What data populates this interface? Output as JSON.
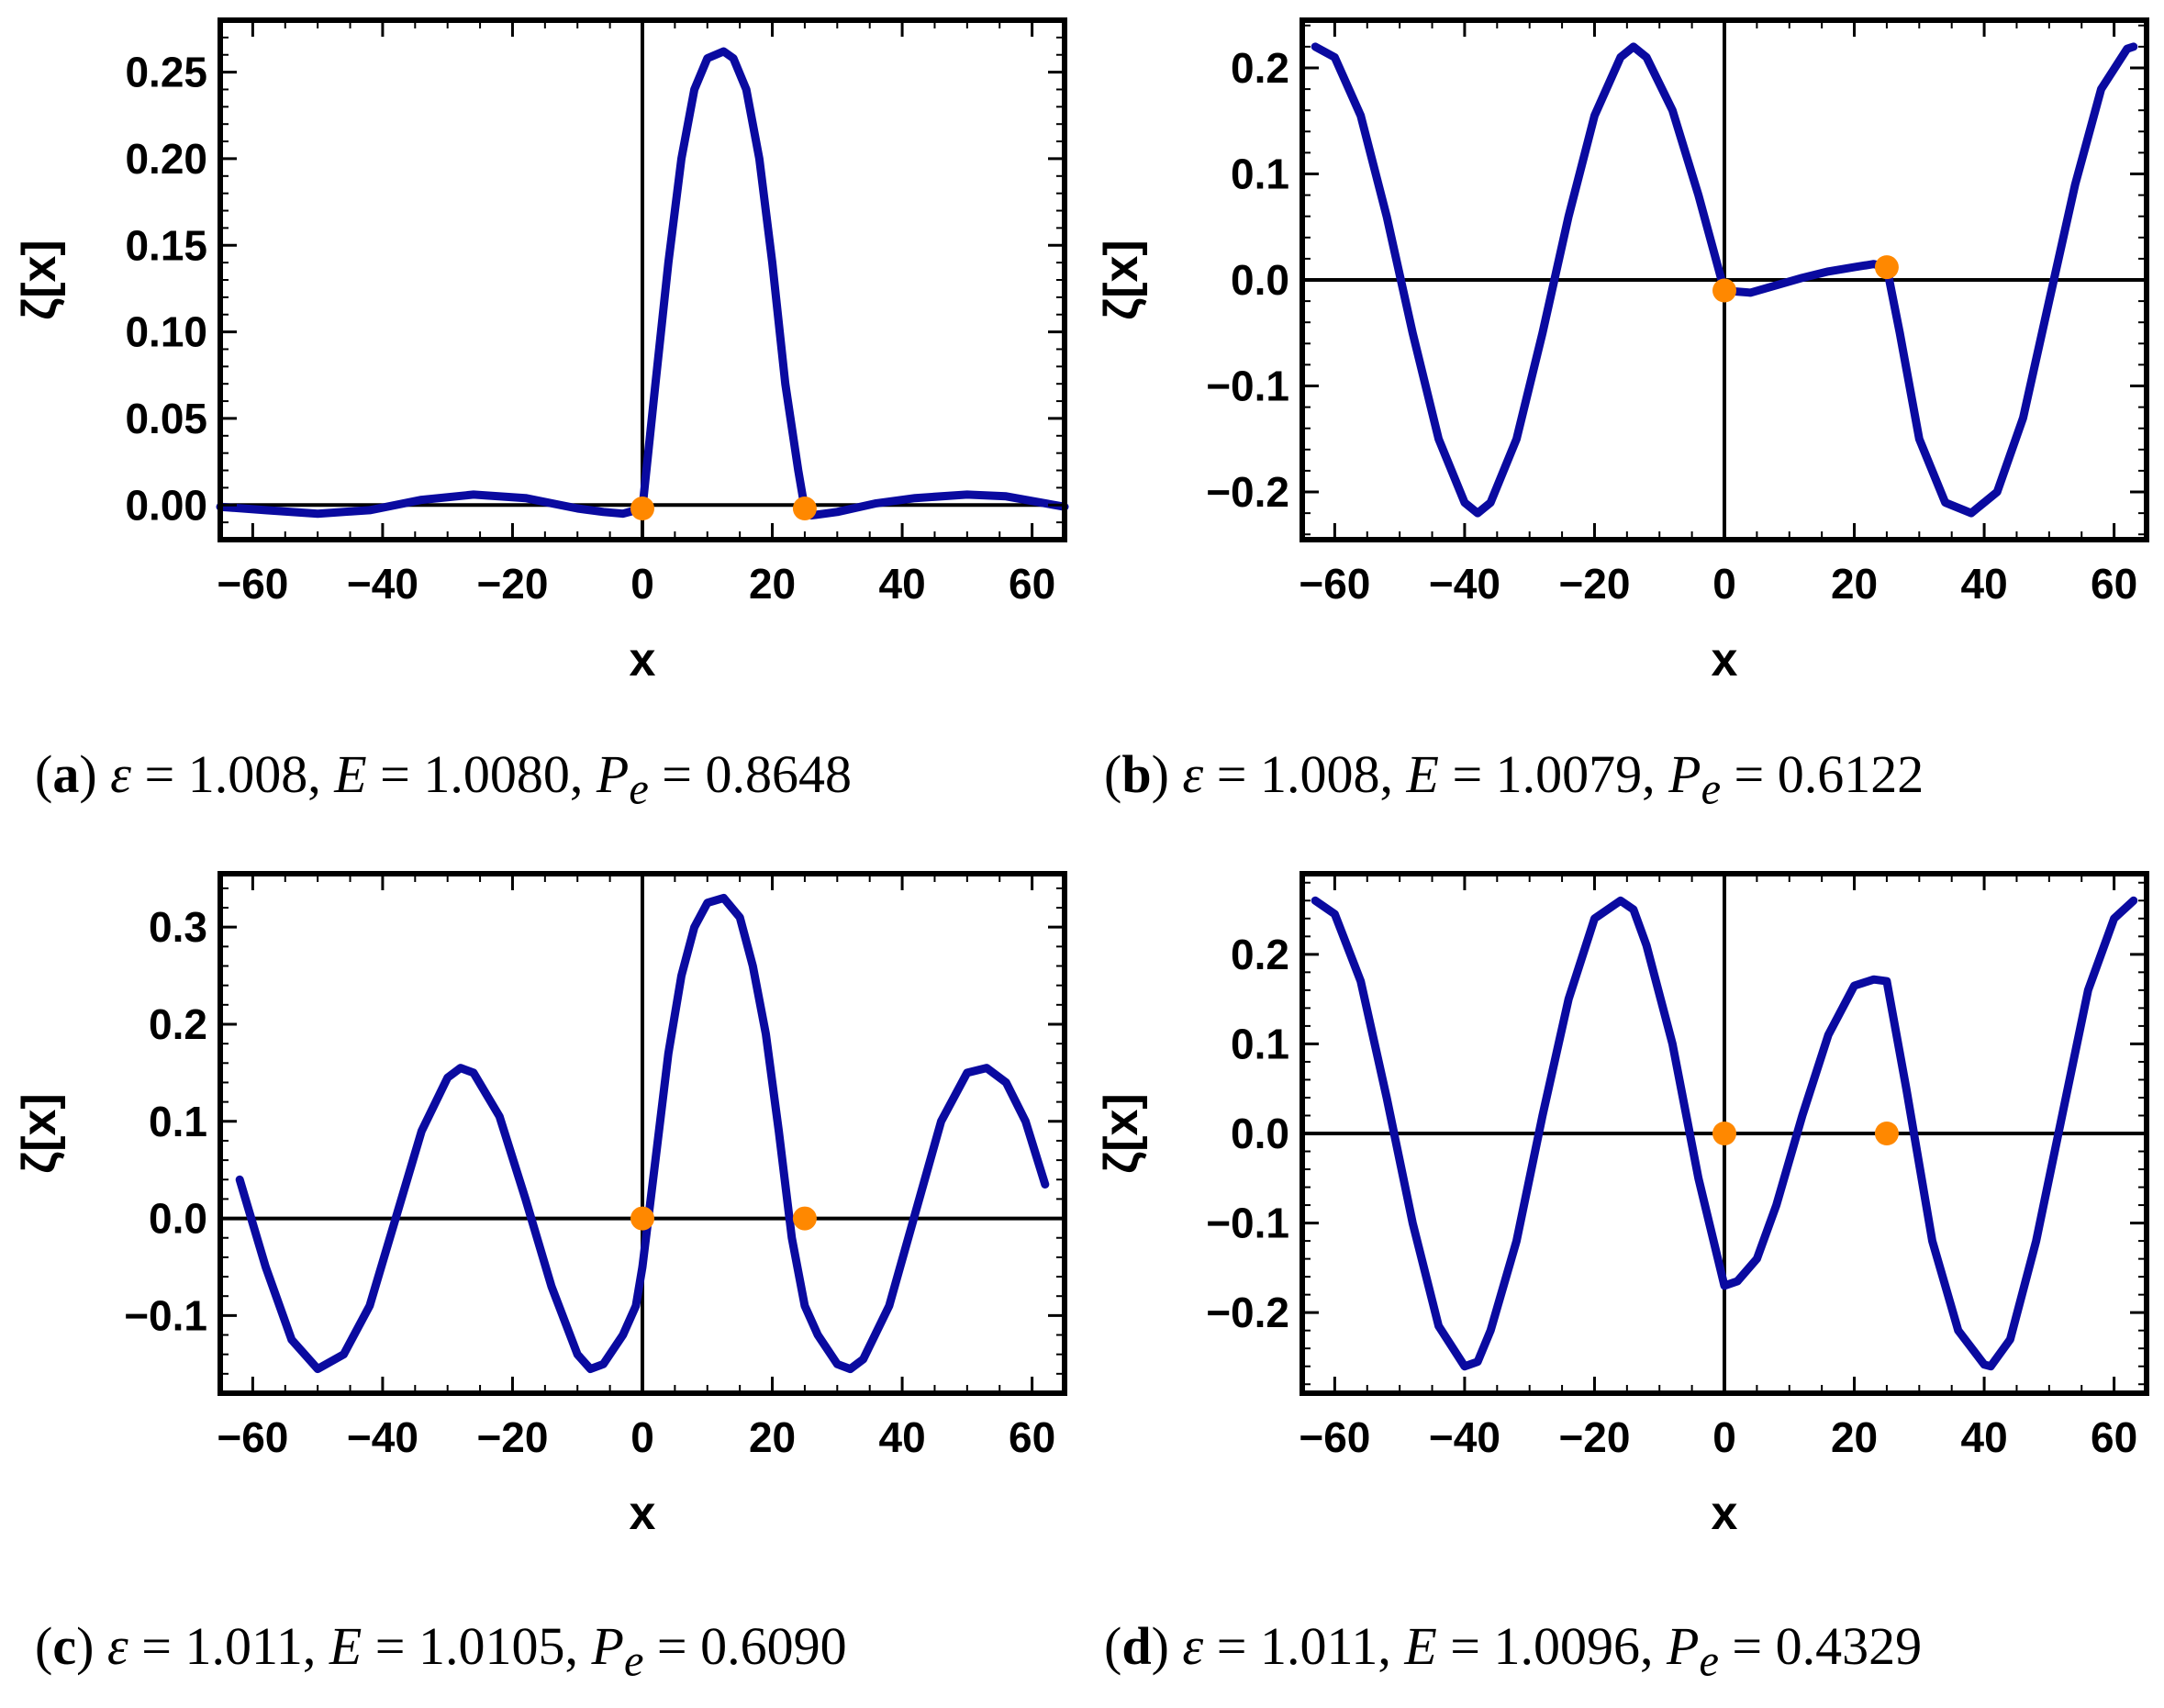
{
  "panels": [
    {
      "id": "a",
      "chart_data": {
        "type": "line",
        "xlabel": "x",
        "ylabel": "ζ[x]",
        "xlim": [
          -65,
          65
        ],
        "ylim": [
          -0.02,
          0.28
        ],
        "xticks": [
          -60,
          -40,
          -20,
          0,
          20,
          40,
          60
        ],
        "xtick_labels": [
          "−60",
          "−40",
          "−20",
          "0",
          "20",
          "40",
          "60"
        ],
        "yticks": [
          0,
          0.05,
          0.1,
          0.15,
          0.2,
          0.25
        ],
        "ytick_labels": [
          "0.00",
          "0.05",
          "0.10",
          "0.15",
          "0.20",
          "0.25"
        ],
        "series": [
          {
            "name": "ζ(x)",
            "color": "#0a0aa0",
            "x": [
              -65,
              -58,
              -50,
              -42,
              -34,
              -26,
              -18,
              -10,
              -6,
              -3,
              -1,
              0,
              2,
              4,
              6,
              8,
              10,
              12.5,
              14,
              16,
              18,
              20,
              22,
              24,
              25,
              26,
              30,
              36,
              42,
              50,
              56,
              65
            ],
            "y": [
              -0.001,
              -0.003,
              -0.005,
              -0.003,
              0.003,
              0.006,
              0.004,
              -0.002,
              -0.004,
              -0.005,
              -0.003,
              -0.002,
              0.07,
              0.14,
              0.2,
              0.24,
              0.258,
              0.262,
              0.258,
              0.24,
              0.2,
              0.14,
              0.07,
              0.02,
              -0.002,
              -0.006,
              -0.004,
              0.001,
              0.004,
              0.006,
              0.005,
              -0.001
            ]
          }
        ],
        "markers": {
          "color": "#ff8800",
          "x": [
            0,
            25
          ],
          "y": [
            -0.002,
            -0.002
          ]
        }
      },
      "caption": {
        "tag": "a",
        "epsilon": "1.008",
        "E": "1.0080",
        "Pe": "0.8648"
      }
    },
    {
      "id": "b",
      "chart_data": {
        "type": "line",
        "xlabel": "x",
        "ylabel": "ζ[x]",
        "xlim": [
          -65,
          65
        ],
        "ylim": [
          -0.245,
          0.245
        ],
        "xticks": [
          -60,
          -40,
          -20,
          0,
          20,
          40,
          60
        ],
        "xtick_labels": [
          "−60",
          "−40",
          "−20",
          "0",
          "20",
          "40",
          "60"
        ],
        "yticks": [
          -0.2,
          -0.1,
          0,
          0.1,
          0.2
        ],
        "ytick_labels": [
          "−0.2",
          "−0.1",
          "0.0",
          "0.1",
          "0.2"
        ],
        "series": [
          {
            "name": "ζ(x)",
            "color": "#0a0aa0",
            "x": [
              -63,
              -60,
              -56,
              -52,
              -48,
              -44,
              -40,
              -38,
              -36,
              -32,
              -28,
              -24,
              -20,
              -16,
              -14,
              -12,
              -8,
              -4,
              0,
              4,
              8,
              12,
              16,
              20,
              23,
              25,
              27,
              30,
              34,
              38,
              42,
              46,
              50,
              54,
              58,
              62,
              63
            ],
            "y": [
              0.22,
              0.21,
              0.155,
              0.06,
              -0.05,
              -0.15,
              -0.21,
              -0.22,
              -0.21,
              -0.15,
              -0.05,
              0.06,
              0.155,
              0.21,
              0.22,
              0.21,
              0.16,
              0.08,
              -0.01,
              -0.012,
              -0.005,
              0.002,
              0.008,
              0.012,
              0.015,
              0.012,
              -0.05,
              -0.15,
              -0.21,
              -0.22,
              -0.2,
              -0.13,
              -0.02,
              0.09,
              0.18,
              0.218,
              0.22
            ]
          }
        ],
        "markers": {
          "color": "#ff8800",
          "x": [
            0,
            25
          ],
          "y": [
            -0.01,
            0.012
          ]
        }
      },
      "caption": {
        "tag": "b",
        "epsilon": "1.008",
        "E": "1.0079",
        "Pe": "0.6122"
      }
    },
    {
      "id": "c",
      "chart_data": {
        "type": "line",
        "xlabel": "x",
        "ylabel": "ζ[x]",
        "xlim": [
          -65,
          65
        ],
        "ylim": [
          -0.18,
          0.355
        ],
        "xticks": [
          -60,
          -40,
          -20,
          0,
          20,
          40,
          60
        ],
        "xtick_labels": [
          "−60",
          "−40",
          "−20",
          "0",
          "20",
          "40",
          "60"
        ],
        "yticks": [
          -0.1,
          0,
          0.1,
          0.2,
          0.3
        ],
        "ytick_labels": [
          "−0.1",
          "0.0",
          "0.1",
          "0.2",
          "0.3"
        ],
        "series": [
          {
            "name": "ζ(x)",
            "color": "#0a0aa0",
            "x": [
              -62,
              -58,
              -54,
              -50,
              -46,
              -42,
              -38,
              -34,
              -30,
              -28,
              -26,
              -22,
              -18,
              -14,
              -10,
              -8,
              -6,
              -3,
              -1,
              0,
              2,
              4,
              6,
              8,
              10,
              12.5,
              15,
              17,
              19,
              21,
              23,
              25,
              27,
              30,
              32,
              34,
              38,
              42,
              46,
              50,
              53,
              56,
              59,
              62
            ],
            "y": [
              0.04,
              -0.05,
              -0.125,
              -0.155,
              -0.14,
              -0.09,
              0.0,
              0.09,
              0.145,
              0.155,
              0.15,
              0.105,
              0.02,
              -0.07,
              -0.14,
              -0.155,
              -0.15,
              -0.12,
              -0.09,
              -0.05,
              0.06,
              0.17,
              0.25,
              0.3,
              0.325,
              0.33,
              0.31,
              0.26,
              0.19,
              0.09,
              -0.02,
              -0.09,
              -0.12,
              -0.15,
              -0.155,
              -0.145,
              -0.09,
              0.005,
              0.1,
              0.15,
              0.155,
              0.14,
              0.1,
              0.035
            ]
          }
        ],
        "markers": {
          "color": "#ff8800",
          "x": [
            0,
            25
          ],
          "y": [
            0.0,
            0.0
          ]
        }
      },
      "caption": {
        "tag": "c",
        "epsilon": "1.011",
        "E": "1.0105",
        "Pe": "0.6090"
      }
    },
    {
      "id": "d",
      "chart_data": {
        "type": "line",
        "xlabel": "x",
        "ylabel": "ζ[x]",
        "xlim": [
          -65,
          65
        ],
        "ylim": [
          -0.29,
          0.29
        ],
        "xticks": [
          -60,
          -40,
          -20,
          0,
          20,
          40,
          60
        ],
        "xtick_labels": [
          "−60",
          "−40",
          "−20",
          "0",
          "20",
          "40",
          "60"
        ],
        "yticks": [
          -0.2,
          -0.1,
          0,
          0.1,
          0.2
        ],
        "ytick_labels": [
          "−0.2",
          "−0.1",
          "0.0",
          "0.1",
          "0.2"
        ],
        "series": [
          {
            "name": "ζ(x)",
            "color": "#0a0aa0",
            "x": [
              -63,
              -60,
              -56,
              -52,
              -48,
              -44,
              -40,
              -38,
              -36,
              -32,
              -28,
              -24,
              -20,
              -16,
              -14,
              -12,
              -8,
              -4,
              -1,
              0,
              2,
              5,
              8,
              12,
              16,
              20,
              23,
              25,
              28,
              32,
              36,
              40,
              41,
              44,
              48,
              52,
              56,
              60,
              63
            ],
            "y": [
              0.26,
              0.245,
              0.17,
              0.04,
              -0.1,
              -0.215,
              -0.26,
              -0.255,
              -0.22,
              -0.12,
              0.02,
              0.15,
              0.24,
              0.26,
              0.25,
              0.21,
              0.1,
              -0.05,
              -0.14,
              -0.17,
              -0.165,
              -0.14,
              -0.08,
              0.02,
              0.11,
              0.165,
              0.172,
              0.17,
              0.05,
              -0.12,
              -0.22,
              -0.258,
              -0.26,
              -0.23,
              -0.12,
              0.02,
              0.16,
              0.24,
              0.26
            ]
          }
        ],
        "markers": {
          "color": "#ff8800",
          "x": [
            0,
            25
          ],
          "y": [
            0.0,
            0.0
          ]
        }
      },
      "caption": {
        "tag": "d",
        "epsilon": "1.011",
        "E": "1.0096",
        "Pe": "0.4329"
      }
    }
  ],
  "caption_text": {
    "epsilon_symbol": "ε",
    "E_symbol": "E",
    "P_symbol": "P",
    "P_sub": "e",
    "eq": " = ",
    "sep": ", ",
    "open_paren": "(",
    "close_paren": ")"
  }
}
